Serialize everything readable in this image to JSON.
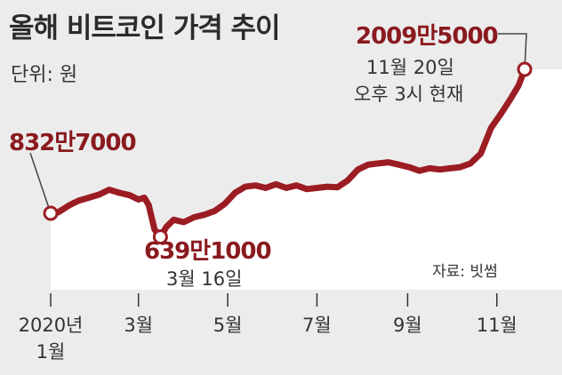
{
  "header": {
    "title": "올해 비트코인 가격 추이",
    "unit": "단위: 원"
  },
  "annotations": {
    "start": {
      "value": "832만7000"
    },
    "low": {
      "value": "639만1000",
      "date": "3월 16일"
    },
    "current": {
      "value": "2009만5000",
      "date": "11월 20일",
      "time": "오후 3시 현재"
    }
  },
  "source": "자료: 빗썸",
  "colors": {
    "line": "#9b1d23",
    "area": "#ffffff",
    "background": "#ececec",
    "highlight_text": "#8a1a1f"
  },
  "chart_data": {
    "type": "area",
    "title": "올해 비트코인 가격 추이",
    "unit": "원",
    "x_ticks": [
      {
        "label": "2020년",
        "sub": "1월",
        "month": 1
      },
      {
        "label": "3월",
        "month": 3
      },
      {
        "label": "5월",
        "month": 5
      },
      {
        "label": "7월",
        "month": 7
      },
      {
        "label": "9월",
        "month": 9
      },
      {
        "label": "11월",
        "month": 11
      }
    ],
    "points": [
      [
        "2020-01-01",
        832.7
      ],
      [
        "2020-01-06",
        840
      ],
      [
        "2020-01-10",
        870
      ],
      [
        "2020-01-14",
        900
      ],
      [
        "2020-01-20",
        935
      ],
      [
        "2020-01-27",
        960
      ],
      [
        "2020-02-03",
        985
      ],
      [
        "2020-02-10",
        1025
      ],
      [
        "2020-02-17",
        1000
      ],
      [
        "2020-02-24",
        980
      ],
      [
        "2020-03-01",
        945
      ],
      [
        "2020-03-05",
        960
      ],
      [
        "2020-03-08",
        900
      ],
      [
        "2020-03-12",
        700
      ],
      [
        "2020-03-16",
        639.1
      ],
      [
        "2020-03-20",
        720
      ],
      [
        "2020-03-25",
        780
      ],
      [
        "2020-04-01",
        760
      ],
      [
        "2020-04-08",
        800
      ],
      [
        "2020-04-15",
        820
      ],
      [
        "2020-04-22",
        850
      ],
      [
        "2020-04-29",
        910
      ],
      [
        "2020-05-06",
        1000
      ],
      [
        "2020-05-13",
        1050
      ],
      [
        "2020-05-20",
        1060
      ],
      [
        "2020-05-27",
        1040
      ],
      [
        "2020-06-03",
        1070
      ],
      [
        "2020-06-10",
        1040
      ],
      [
        "2020-06-17",
        1060
      ],
      [
        "2020-06-24",
        1030
      ],
      [
        "2020-07-01",
        1040
      ],
      [
        "2020-07-08",
        1050
      ],
      [
        "2020-07-15",
        1045
      ],
      [
        "2020-07-22",
        1100
      ],
      [
        "2020-07-29",
        1190
      ],
      [
        "2020-08-05",
        1230
      ],
      [
        "2020-08-12",
        1240
      ],
      [
        "2020-08-19",
        1250
      ],
      [
        "2020-08-26",
        1230
      ],
      [
        "2020-09-02",
        1210
      ],
      [
        "2020-09-09",
        1180
      ],
      [
        "2020-09-16",
        1200
      ],
      [
        "2020-09-23",
        1190
      ],
      [
        "2020-09-30",
        1200
      ],
      [
        "2020-10-07",
        1210
      ],
      [
        "2020-10-14",
        1240
      ],
      [
        "2020-10-21",
        1320
      ],
      [
        "2020-10-28",
        1530
      ],
      [
        "2020-11-04",
        1650
      ],
      [
        "2020-11-11",
        1780
      ],
      [
        "2020-11-16",
        1880
      ],
      [
        "2020-11-20",
        2009.5
      ]
    ],
    "start_value": 832.7,
    "low": {
      "date": "2020-03-16",
      "value": 639.1
    },
    "end": {
      "date": "2020-11-20",
      "value": 2009.5
    }
  }
}
